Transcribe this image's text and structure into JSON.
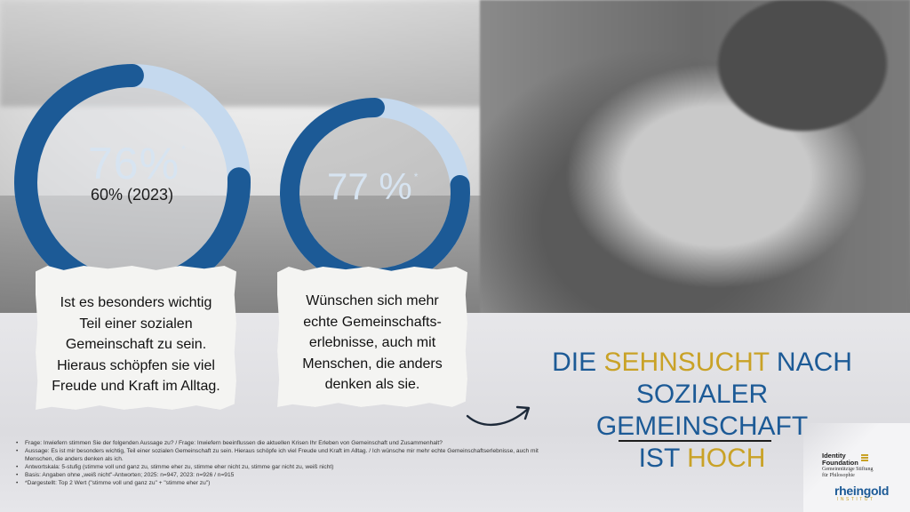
{
  "chart_data": [
    {
      "type": "pie",
      "variant": "donut",
      "value_percent": 76,
      "value_label": "76%",
      "footnote_marker": "*",
      "comparison_label": "60% (2023)",
      "comparison_percent": 60,
      "colors": {
        "value": "#1c5a96",
        "rest": "#c5d9ee"
      },
      "caption": "Ist es besonders wichtig Teil einer sozialen Gemeinschaft zu sein. Hieraus schöpfen sie viel Freude und Kraft im Alltag."
    },
    {
      "type": "pie",
      "variant": "donut",
      "value_percent": 77,
      "value_label": "77 %",
      "footnote_marker": "*",
      "colors": {
        "value": "#1c5a96",
        "rest": "#c5d9ee"
      },
      "caption": "Wünschen sich mehr echte Gemeinschafts-erlebnisse, auch mit Menschen, die anders denken als sie."
    }
  ],
  "captions": {
    "card1_lines": [
      "Ist es besonders wichtig",
      "Teil einer sozialen",
      "Gemeinschaft zu sein.",
      "Hieraus schöpfen sie viel",
      "Freude und Kraft im Alltag."
    ],
    "card2_lines": [
      "Wünschen sich mehr",
      "echte Gemeinschafts-",
      "erlebnisse, auch mit",
      "Menschen, die anders",
      "denken als sie."
    ]
  },
  "headline": {
    "line1_a": "DIE ",
    "line1_b": "SEHNSUCHT",
    "line1_c": " NACH",
    "line2": "SOZIALER GEMEINSCHAFT",
    "line3_a": "IST ",
    "line3_b": "HOCH",
    "accent_color": "#c9a227",
    "main_color": "#1c5a96"
  },
  "notes": [
    "Frage: Inwiefern stimmen Sie der folgenden Aussage zu? / Frage: Inwiefern beeinflussen die aktuellen Krisen Ihr Erleben von Gemeinschaft und Zusammenhalt?",
    "Aussage: Es ist mir besonders wichtig, Teil einer sozialen Gemeinschaft zu sein. Hieraus schöpfe ich viel Freude und Kraft im Alltag. / Ich wünsche mir mehr echte Gemeinschaftserlebnisse, auch mit Menschen, die anders denken als ich.",
    "Antwortskala: 5-stufig (stimme voll und ganz zu, stimme eher zu, stimme eher nicht zu, stimme gar nicht zu, weiß nicht)",
    "Basis: Angaben ohne „weiß nicht\"-Antworten; 2025: n=947, 2023: n=926 / n=915",
    "*Dargestellt: Top 2 Wert (\"stimme voll und ganz zu\" + \"stimme eher zu\")"
  ],
  "logos": {
    "identity_name_1": "Identity",
    "identity_name_2": "Foundation",
    "identity_sub_1": "Gemeinnützige Stiftung",
    "identity_sub_2": "für Philosophie",
    "rheingold_name": "rheingold",
    "rheingold_sub": "INSTITUT"
  }
}
